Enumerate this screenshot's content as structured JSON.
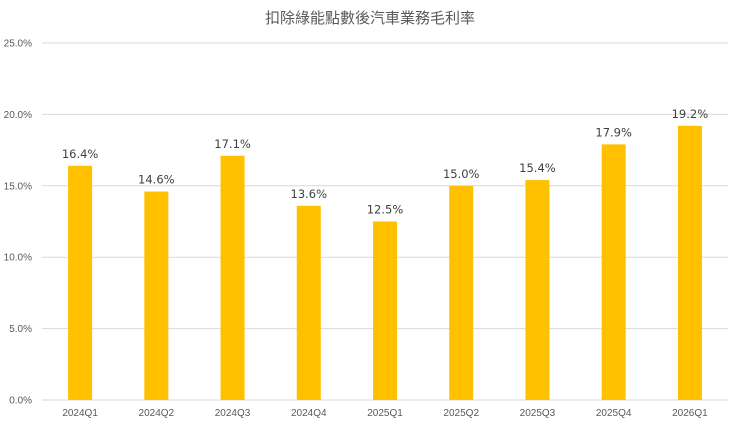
{
  "chart_data": {
    "type": "bar",
    "title": "扣除綠能點數後汽車業務毛利率",
    "xlabel": "",
    "ylabel": "",
    "categories": [
      "2024Q1",
      "2024Q2",
      "2024Q3",
      "2024Q4",
      "2025Q1",
      "2025Q2",
      "2025Q3",
      "2025Q4",
      "2026Q1"
    ],
    "values": [
      16.4,
      14.6,
      17.1,
      13.6,
      12.5,
      15.0,
      15.4,
      17.9,
      19.2
    ],
    "data_labels": [
      "16.4%",
      "14.6%",
      "17.1%",
      "13.6%",
      "12.5%",
      "15.0%",
      "15.4%",
      "17.9%",
      "19.2%"
    ],
    "ylim": [
      0,
      25
    ],
    "yticks": [
      0,
      5,
      10,
      15,
      20,
      25
    ],
    "ytick_labels": [
      "0.0%",
      "5.0%",
      "10.0%",
      "15.0%",
      "20.0%",
      "25.0%"
    ],
    "grid": true,
    "legend": "none",
    "colors": {
      "bar": "#FFC000",
      "grid": "#D9D9D9",
      "text": "#595959"
    }
  }
}
